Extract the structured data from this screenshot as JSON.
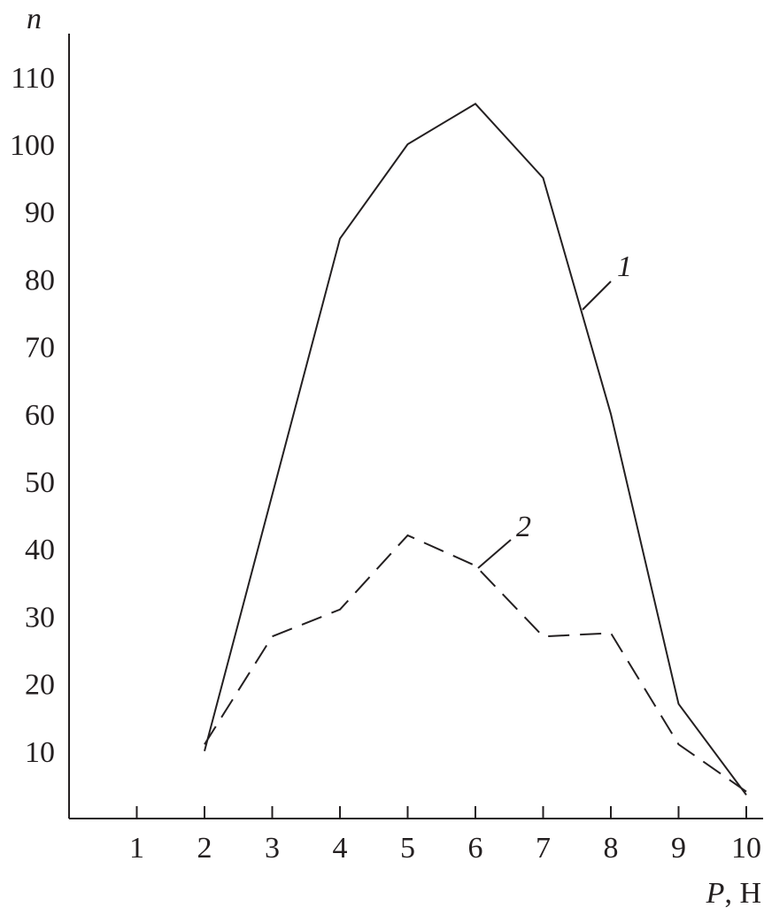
{
  "chart_data": {
    "type": "line",
    "title": "",
    "xlabel_var": "P",
    "xlabel_unit": ", Н",
    "ylabel": "n",
    "xlim": [
      0,
      10
    ],
    "ylim": [
      0,
      110
    ],
    "xticks": [
      1,
      2,
      3,
      4,
      5,
      6,
      7,
      8,
      9,
      10
    ],
    "yticks": [
      10,
      20,
      30,
      40,
      50,
      60,
      70,
      80,
      90,
      100,
      110
    ],
    "grid": false,
    "series": [
      {
        "name": "1",
        "style": "solid",
        "x": [
          2,
          4,
          5,
          6,
          7,
          8,
          9,
          10
        ],
        "y": [
          10,
          86,
          100,
          106,
          95,
          60,
          17,
          3.5
        ]
      },
      {
        "name": "2",
        "style": "dashed",
        "x": [
          2,
          3,
          4,
          5,
          6,
          7,
          8,
          9,
          10
        ],
        "y": [
          11,
          27,
          31,
          42,
          37.5,
          27,
          27.5,
          11,
          4
        ]
      }
    ],
    "colors": {
      "ink": "#231f20"
    }
  }
}
